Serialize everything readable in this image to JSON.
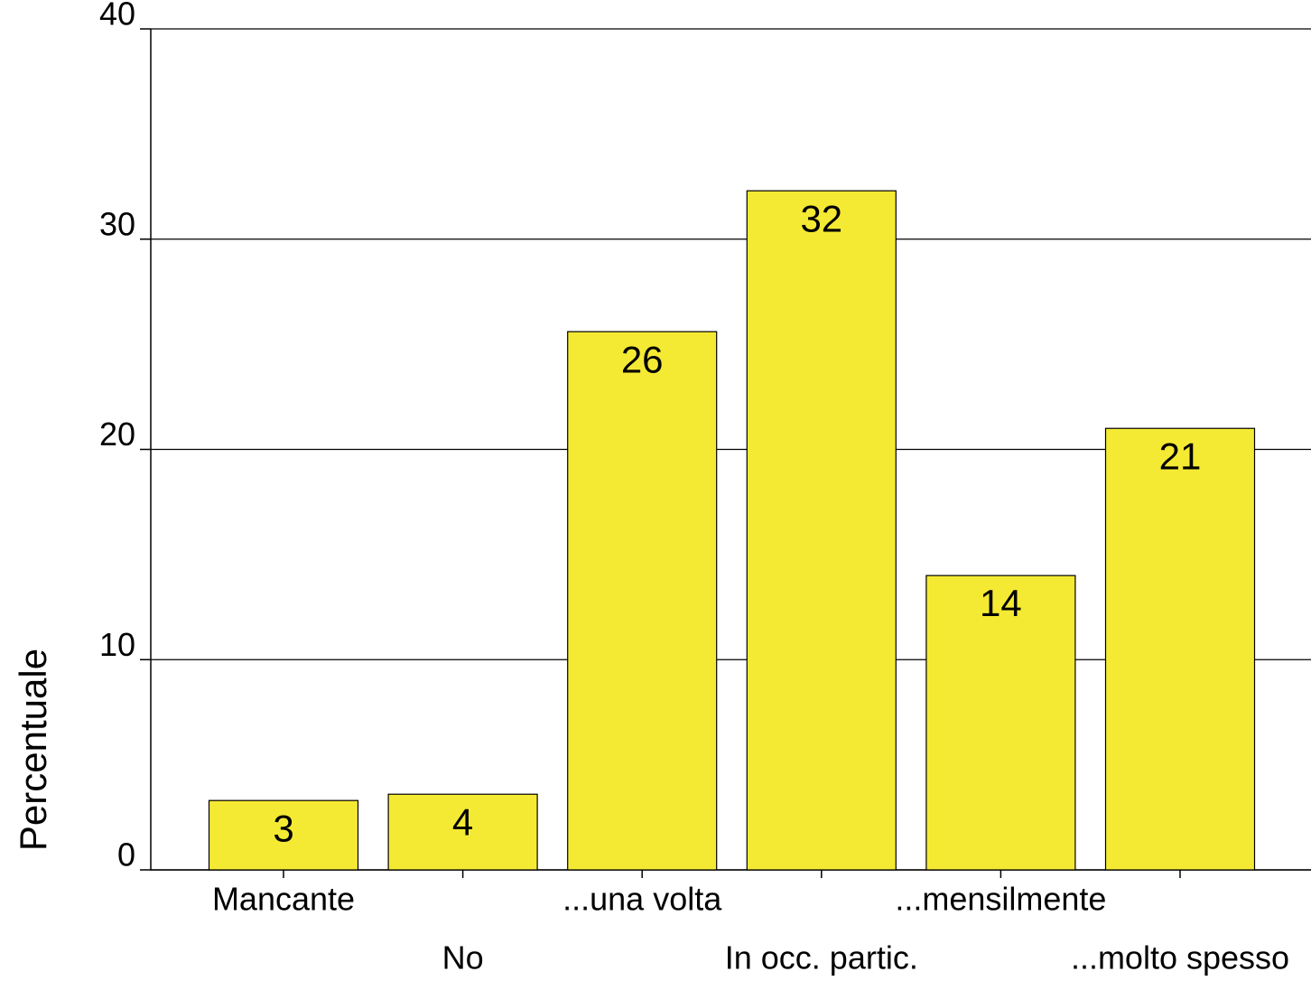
{
  "chart_data": {
    "type": "bar",
    "y_label": "Percentuale",
    "categories": [
      "Mancante",
      "No",
      "...una volta",
      "In occ. partic.",
      "...mensilmente",
      "...molto spesso"
    ],
    "values": [
      3.3,
      3.6,
      25.6,
      32.3,
      14.0,
      21.0
    ],
    "value_labels": [
      "3",
      "4",
      "26",
      "32",
      "14",
      "21"
    ],
    "color": "#f5ea33",
    "ylim": [
      0,
      40
    ],
    "yticks": [
      0,
      10,
      20,
      30,
      40
    ],
    "grid": true
  }
}
